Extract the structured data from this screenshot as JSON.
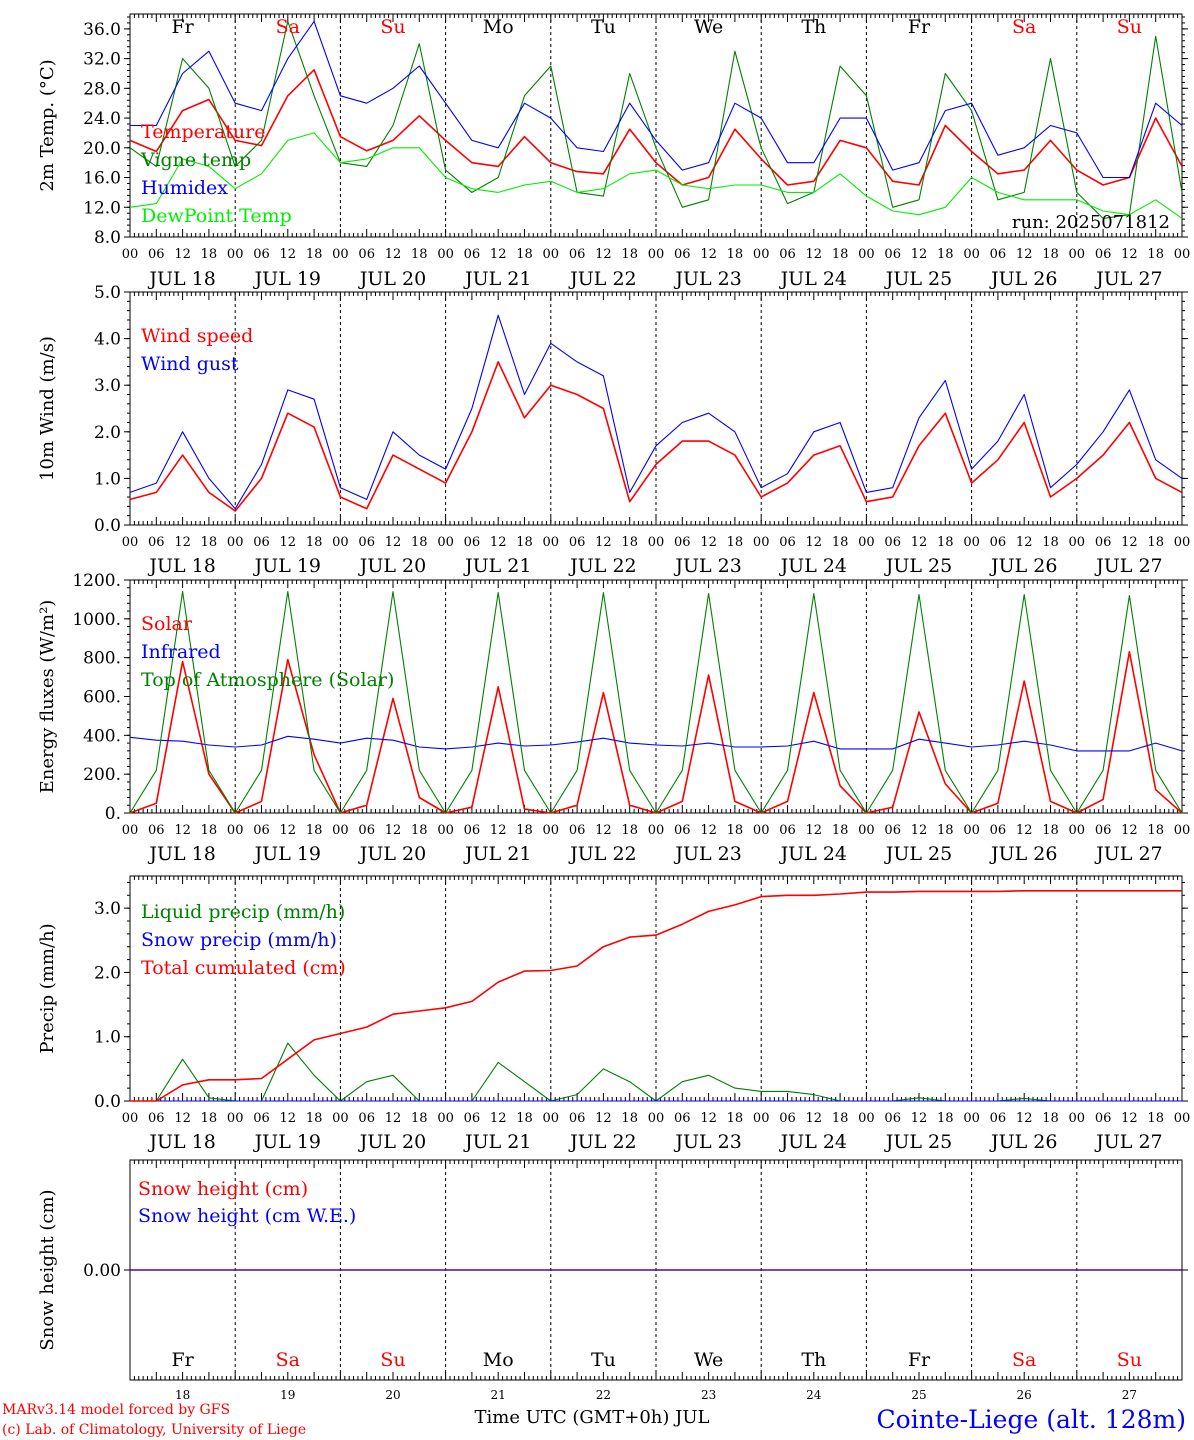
{
  "footer": {
    "model": "MARv3.14 model forced by GFS",
    "credit": "(c) Lab. of Climatology, University of Liege",
    "xlabel": "Time UTC (GMT+0h) JUL",
    "station": "Cointe-Liege (alt. 128m)"
  },
  "days": {
    "weekday_labels": [
      "Fr",
      "Sa",
      "Su",
      "Mo",
      "Tu",
      "We",
      "Th",
      "Fr",
      "Sa",
      "Su"
    ],
    "weekend_flags": [
      false,
      true,
      true,
      false,
      false,
      false,
      false,
      false,
      true,
      true
    ],
    "date_labels": [
      "JUL 18",
      "JUL 19",
      "JUL 20",
      "JUL 21",
      "JUL 22",
      "JUL 23",
      "JUL 24",
      "JUL 25",
      "JUL 26",
      "JUL 27"
    ],
    "day_numbers": [
      "18",
      "19",
      "20",
      "21",
      "22",
      "23",
      "24",
      "25",
      "26",
      "27"
    ],
    "hour_labels": [
      "00",
      "06",
      "12",
      "18"
    ],
    "final_hour_label": "00"
  },
  "colors": {
    "red": "#ff0000",
    "green": "#008000",
    "blue": "#0000ff",
    "lime": "#00ee00",
    "axis": "#000000"
  },
  "chart_data": [
    {
      "type": "line",
      "ylabel": "2m Temp. (°C)",
      "ylim": [
        8,
        38
      ],
      "yticks": [
        "8.0",
        "12.0",
        "16.0",
        "20.0",
        "24.0",
        "28.0",
        "32.0",
        "36.0"
      ],
      "annotation": "run: 2025071812",
      "x_hours": [
        0,
        6,
        12,
        18,
        24,
        30,
        36,
        42,
        48,
        54,
        60,
        66,
        72,
        78,
        84,
        90,
        96,
        102,
        108,
        114,
        120,
        126,
        132,
        138,
        144,
        150,
        156,
        162,
        168,
        174,
        180,
        186,
        192,
        198,
        204,
        210,
        216,
        222,
        228,
        234,
        240
      ],
      "series": [
        {
          "name": "Temperature",
          "color": "red",
          "values": [
            21,
            19.5,
            25,
            26.5,
            21,
            20.3,
            27,
            30.5,
            21.5,
            19.6,
            21,
            24.3,
            21,
            18,
            17.5,
            21.5,
            18,
            16.8,
            16.5,
            22.5,
            18,
            15,
            16,
            22.5,
            18.5,
            15,
            15.5,
            21,
            20,
            15.5,
            15,
            23,
            19.5,
            16.5,
            17,
            21,
            17,
            15,
            16,
            24,
            17.5
          ]
        },
        {
          "name": "Vigne temp",
          "color": "green",
          "values": [
            20,
            17.5,
            32,
            28,
            17.5,
            21,
            37,
            27,
            18,
            17.5,
            23,
            34,
            17,
            14,
            16,
            27,
            31,
            14,
            13.5,
            30,
            20,
            12,
            13,
            33,
            20,
            12.5,
            14,
            31,
            27,
            12,
            13,
            30,
            25,
            13,
            14,
            32,
            14,
            10.5,
            11,
            35,
            14
          ]
        },
        {
          "name": "Humidex",
          "color": "blue",
          "values": [
            23,
            23,
            30,
            33,
            26,
            25,
            32,
            37,
            27,
            26,
            28,
            31,
            26,
            21,
            20,
            26,
            24,
            20,
            19.5,
            26,
            21,
            17,
            18,
            26,
            24,
            18,
            18,
            24,
            24,
            17,
            18,
            25,
            26,
            19,
            20,
            23,
            22,
            16,
            16,
            26,
            23
          ]
        },
        {
          "name": "DewPoint Temp",
          "color": "lime",
          "values": [
            12,
            12.5,
            18.5,
            17.5,
            14.5,
            16.5,
            21,
            22,
            18,
            18.5,
            20,
            20,
            16,
            14.5,
            14,
            15,
            15.5,
            14,
            14.5,
            16.5,
            17,
            15,
            14.5,
            15,
            15,
            14,
            14,
            16.5,
            13.5,
            11.5,
            11,
            12,
            16,
            14,
            13,
            13,
            13,
            11.5,
            11,
            13,
            10.5
          ]
        }
      ]
    },
    {
      "type": "line",
      "ylabel": "10m Wind (m/s)",
      "ylim": [
        0,
        5
      ],
      "yticks": [
        "0.0",
        "1.0",
        "2.0",
        "3.0",
        "4.0",
        "5.0"
      ],
      "x_hours": [
        0,
        6,
        12,
        18,
        24,
        30,
        36,
        42,
        48,
        54,
        60,
        66,
        72,
        78,
        84,
        90,
        96,
        102,
        108,
        114,
        120,
        126,
        132,
        138,
        144,
        150,
        156,
        162,
        168,
        174,
        180,
        186,
        192,
        198,
        204,
        210,
        216,
        222,
        228,
        234,
        240
      ],
      "series": [
        {
          "name": "Wind speed",
          "color": "red",
          "values": [
            0.55,
            0.7,
            1.5,
            0.7,
            0.3,
            1.0,
            2.4,
            2.1,
            0.6,
            0.35,
            1.5,
            1.2,
            0.9,
            2.0,
            3.5,
            2.3,
            3.0,
            2.8,
            2.5,
            0.5,
            1.3,
            1.8,
            1.8,
            1.5,
            0.6,
            0.9,
            1.5,
            1.7,
            0.5,
            0.6,
            1.7,
            2.4,
            0.9,
            1.4,
            2.2,
            0.6,
            1.0,
            1.5,
            2.2,
            1.0,
            0.7
          ]
        },
        {
          "name": "Wind gust",
          "color": "blue",
          "values": [
            0.7,
            0.9,
            2.0,
            1.0,
            0.35,
            1.3,
            2.9,
            2.7,
            0.8,
            0.55,
            2.0,
            1.5,
            1.2,
            2.5,
            4.5,
            2.8,
            3.9,
            3.5,
            3.2,
            0.7,
            1.7,
            2.2,
            2.4,
            2.0,
            0.8,
            1.1,
            2.0,
            2.2,
            0.7,
            0.8,
            2.3,
            3.1,
            1.2,
            1.8,
            2.8,
            0.8,
            1.3,
            2.0,
            2.9,
            1.4,
            1.0
          ]
        }
      ]
    },
    {
      "type": "line",
      "ylabel": "Energy fluxes (W/m²)",
      "ylim": [
        0,
        1200
      ],
      "yticks": [
        "0.",
        "200.",
        "400.",
        "600.",
        "800.",
        "1000.",
        "1200."
      ],
      "x_hours": [
        0,
        6,
        12,
        18,
        24,
        30,
        36,
        42,
        48,
        54,
        60,
        66,
        72,
        78,
        84,
        90,
        96,
        102,
        108,
        114,
        120,
        126,
        132,
        138,
        144,
        150,
        156,
        162,
        168,
        174,
        180,
        186,
        192,
        198,
        204,
        210,
        216,
        222,
        228,
        234,
        240
      ],
      "series": [
        {
          "name": "Solar",
          "color": "red",
          "values": [
            0,
            50,
            780,
            200,
            0,
            60,
            790,
            300,
            0,
            40,
            590,
            80,
            0,
            30,
            650,
            20,
            0,
            40,
            620,
            40,
            0,
            60,
            710,
            60,
            0,
            60,
            620,
            140,
            0,
            30,
            520,
            150,
            0,
            50,
            680,
            60,
            0,
            70,
            830,
            120,
            0
          ]
        },
        {
          "name": "Infrared",
          "color": "blue",
          "values": [
            390,
            375,
            370,
            350,
            340,
            350,
            395,
            380,
            360,
            385,
            375,
            340,
            330,
            340,
            360,
            345,
            350,
            365,
            385,
            360,
            350,
            345,
            360,
            340,
            340,
            345,
            370,
            330,
            330,
            330,
            380,
            360,
            340,
            350,
            370,
            350,
            320,
            320,
            320,
            360,
            320
          ]
        },
        {
          "name": "Top of Atmosphere (Solar)",
          "color": "green",
          "values": [
            0,
            220,
            1140,
            220,
            0,
            220,
            1140,
            220,
            0,
            220,
            1140,
            220,
            0,
            220,
            1135,
            220,
            0,
            220,
            1135,
            220,
            0,
            220,
            1130,
            220,
            0,
            220,
            1130,
            220,
            0,
            220,
            1125,
            220,
            0,
            220,
            1125,
            220,
            0,
            220,
            1120,
            220,
            0
          ]
        }
      ]
    },
    {
      "type": "line",
      "ylabel": "Precip (mm/h)",
      "ylim": [
        0,
        3.5
      ],
      "yticks": [
        "0.0",
        "1.0",
        "2.0",
        "3.0"
      ],
      "x_hours": [
        0,
        6,
        12,
        18,
        24,
        30,
        36,
        42,
        48,
        54,
        60,
        66,
        72,
        78,
        84,
        90,
        96,
        102,
        108,
        114,
        120,
        126,
        132,
        138,
        144,
        150,
        156,
        162,
        168,
        174,
        180,
        186,
        192,
        198,
        204,
        210,
        216,
        222,
        228,
        234,
        240
      ],
      "series": [
        {
          "name": "Liquid precip (mm/h)",
          "color": "green",
          "values": [
            0,
            0,
            0.65,
            0.05,
            0,
            0,
            0.9,
            0.4,
            0,
            0.3,
            0.4,
            0,
            0,
            0,
            0.6,
            0.3,
            0,
            0.1,
            0.5,
            0.3,
            0,
            0.3,
            0.4,
            0.2,
            0.15,
            0.15,
            0.1,
            0,
            0,
            0,
            0.05,
            0,
            0,
            0,
            0.04,
            0,
            0,
            0,
            0,
            0,
            0
          ]
        },
        {
          "name": "Snow precip (mm/h)",
          "color": "blue",
          "values": [
            0,
            0,
            0,
            0,
            0,
            0,
            0,
            0,
            0,
            0,
            0,
            0,
            0,
            0,
            0,
            0,
            0,
            0,
            0,
            0,
            0,
            0,
            0,
            0,
            0,
            0,
            0,
            0,
            0,
            0,
            0,
            0,
            0,
            0,
            0,
            0,
            0,
            0,
            0,
            0,
            0
          ]
        },
        {
          "name": "Total cumulated (cm)",
          "color": "red",
          "values": [
            0,
            0,
            0.25,
            0.33,
            0.33,
            0.35,
            0.65,
            0.95,
            1.05,
            1.15,
            1.35,
            1.4,
            1.45,
            1.55,
            1.85,
            2.02,
            2.03,
            2.1,
            2.4,
            2.55,
            2.58,
            2.75,
            2.95,
            3.05,
            3.18,
            3.2,
            3.2,
            3.22,
            3.25,
            3.25,
            3.26,
            3.26,
            3.26,
            3.26,
            3.27,
            3.27,
            3.27,
            3.27,
            3.27,
            3.27,
            3.27
          ]
        }
      ]
    },
    {
      "type": "line",
      "ylabel": "Snow height (cm)",
      "ylim": [
        -1,
        1
      ],
      "yticks": [
        "0.00"
      ],
      "x_hours": [
        0,
        240
      ],
      "series": [
        {
          "name": "Snow height (cm)",
          "color": "red",
          "values": [
            0,
            0
          ]
        },
        {
          "name": "Snow height (cm W.E.)",
          "color": "blue",
          "values": [
            0,
            0
          ]
        }
      ]
    }
  ]
}
